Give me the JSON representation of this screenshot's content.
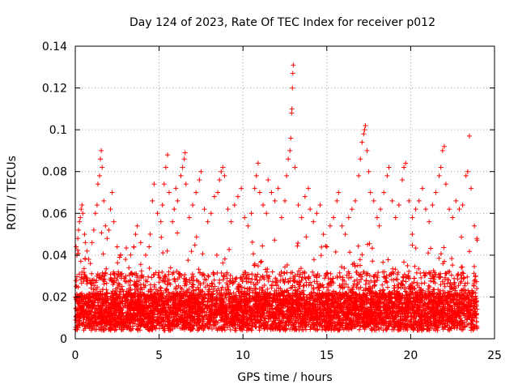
{
  "chart_data": {
    "type": "scatter",
    "title": "Day 124 of 2023, Rate Of TEC Index for receiver p012",
    "xlabel": "GPS time / hours",
    "ylabel": "ROTI / TECUs",
    "xlim": [
      0,
      25
    ],
    "ylim": [
      0,
      0.14
    ],
    "xticks": [
      "0",
      "5",
      "10",
      "15",
      "20",
      "25"
    ],
    "yticks": [
      "0",
      "0.02",
      "0.04",
      "0.06",
      "0.08",
      "0.1",
      "0.12",
      "0.14"
    ],
    "grid": true,
    "marker": "plus",
    "color": "#ff0000",
    "points": [
      [
        0.05,
        0.044
      ],
      [
        0.1,
        0.04
      ],
      [
        0.15,
        0.048
      ],
      [
        0.2,
        0.052
      ],
      [
        0.25,
        0.056
      ],
      [
        0.3,
        0.058
      ],
      [
        0.35,
        0.062
      ],
      [
        0.4,
        0.064
      ],
      [
        0.45,
        0.06
      ],
      [
        0.55,
        0.05
      ],
      [
        0.6,
        0.046
      ],
      [
        0.7,
        0.042
      ],
      [
        0.8,
        0.038
      ],
      [
        0.9,
        0.036
      ],
      [
        1.0,
        0.046
      ],
      [
        1.1,
        0.052
      ],
      [
        1.2,
        0.06
      ],
      [
        1.3,
        0.064
      ],
      [
        1.35,
        0.074
      ],
      [
        1.45,
        0.078
      ],
      [
        1.5,
        0.086
      ],
      [
        1.55,
        0.09
      ],
      [
        1.6,
        0.082
      ],
      [
        1.7,
        0.066
      ],
      [
        1.8,
        0.054
      ],
      [
        1.9,
        0.048
      ],
      [
        2.0,
        0.052
      ],
      [
        2.1,
        0.062
      ],
      [
        2.2,
        0.07
      ],
      [
        2.3,
        0.056
      ],
      [
        2.5,
        0.044
      ],
      [
        2.7,
        0.04
      ],
      [
        3.0,
        0.038
      ],
      [
        3.2,
        0.034
      ],
      [
        3.5,
        0.044
      ],
      [
        3.6,
        0.05
      ],
      [
        3.7,
        0.054
      ],
      [
        3.9,
        0.046
      ],
      [
        4.2,
        0.04
      ],
      [
        4.4,
        0.044
      ],
      [
        4.6,
        0.066
      ],
      [
        4.7,
        0.074
      ],
      [
        4.9,
        0.06
      ],
      [
        5.1,
        0.056
      ],
      [
        5.2,
        0.064
      ],
      [
        5.3,
        0.074
      ],
      [
        5.4,
        0.082
      ],
      [
        5.5,
        0.088
      ],
      [
        5.6,
        0.07
      ],
      [
        5.8,
        0.056
      ],
      [
        5.9,
        0.062
      ],
      [
        6.0,
        0.072
      ],
      [
        6.1,
        0.066
      ],
      [
        6.3,
        0.078
      ],
      [
        6.4,
        0.082
      ],
      [
        6.5,
        0.086
      ],
      [
        6.55,
        0.089
      ],
      [
        6.6,
        0.074
      ],
      [
        6.8,
        0.058
      ],
      [
        7.0,
        0.064
      ],
      [
        7.2,
        0.07
      ],
      [
        7.4,
        0.076
      ],
      [
        7.5,
        0.08
      ],
      [
        7.7,
        0.062
      ],
      [
        7.9,
        0.056
      ],
      [
        8.1,
        0.06
      ],
      [
        8.3,
        0.068
      ],
      [
        8.5,
        0.07
      ],
      [
        8.6,
        0.076
      ],
      [
        8.7,
        0.08
      ],
      [
        8.8,
        0.082
      ],
      [
        8.9,
        0.078
      ],
      [
        9.1,
        0.062
      ],
      [
        9.3,
        0.056
      ],
      [
        9.5,
        0.064
      ],
      [
        9.7,
        0.068
      ],
      [
        9.9,
        0.072
      ],
      [
        10.1,
        0.058
      ],
      [
        10.3,
        0.054
      ],
      [
        10.5,
        0.06
      ],
      [
        10.7,
        0.072
      ],
      [
        10.8,
        0.078
      ],
      [
        10.9,
        0.084
      ],
      [
        11.0,
        0.07
      ],
      [
        11.2,
        0.064
      ],
      [
        11.4,
        0.06
      ],
      [
        11.5,
        0.076
      ],
      [
        11.7,
        0.07
      ],
      [
        11.9,
        0.066
      ],
      [
        12.1,
        0.072
      ],
      [
        12.3,
        0.058
      ],
      [
        12.5,
        0.066
      ],
      [
        12.6,
        0.078
      ],
      [
        12.7,
        0.086
      ],
      [
        12.8,
        0.09
      ],
      [
        12.85,
        0.096
      ],
      [
        12.9,
        0.108
      ],
      [
        12.92,
        0.11
      ],
      [
        12.95,
        0.12
      ],
      [
        12.97,
        0.127
      ],
      [
        13.0,
        0.131
      ],
      [
        13.1,
        0.082
      ],
      [
        13.3,
        0.064
      ],
      [
        13.5,
        0.058
      ],
      [
        13.7,
        0.068
      ],
      [
        13.9,
        0.072
      ],
      [
        14.0,
        0.062
      ],
      [
        14.2,
        0.056
      ],
      [
        14.4,
        0.06
      ],
      [
        14.6,
        0.064
      ],
      [
        14.8,
        0.05
      ],
      [
        15.0,
        0.044
      ],
      [
        15.2,
        0.054
      ],
      [
        15.4,
        0.058
      ],
      [
        15.6,
        0.066
      ],
      [
        15.7,
        0.07
      ],
      [
        15.9,
        0.054
      ],
      [
        16.1,
        0.05
      ],
      [
        16.3,
        0.058
      ],
      [
        16.5,
        0.062
      ],
      [
        16.7,
        0.066
      ],
      [
        16.9,
        0.078
      ],
      [
        17.0,
        0.086
      ],
      [
        17.1,
        0.094
      ],
      [
        17.2,
        0.098
      ],
      [
        17.25,
        0.1
      ],
      [
        17.3,
        0.102
      ],
      [
        17.4,
        0.09
      ],
      [
        17.5,
        0.08
      ],
      [
        17.6,
        0.07
      ],
      [
        17.8,
        0.066
      ],
      [
        18.0,
        0.058
      ],
      [
        18.2,
        0.062
      ],
      [
        18.4,
        0.07
      ],
      [
        18.6,
        0.078
      ],
      [
        18.7,
        0.082
      ],
      [
        18.9,
        0.066
      ],
      [
        19.1,
        0.058
      ],
      [
        19.3,
        0.064
      ],
      [
        19.5,
        0.076
      ],
      [
        19.6,
        0.082
      ],
      [
        19.7,
        0.084
      ],
      [
        19.9,
        0.066
      ],
      [
        20.1,
        0.058
      ],
      [
        20.3,
        0.062
      ],
      [
        20.5,
        0.066
      ],
      [
        20.7,
        0.072
      ],
      [
        20.9,
        0.062
      ],
      [
        21.1,
        0.056
      ],
      [
        21.3,
        0.064
      ],
      [
        21.5,
        0.07
      ],
      [
        21.7,
        0.078
      ],
      [
        21.8,
        0.082
      ],
      [
        21.9,
        0.09
      ],
      [
        22.0,
        0.092
      ],
      [
        22.1,
        0.074
      ],
      [
        22.3,
        0.062
      ],
      [
        22.5,
        0.058
      ],
      [
        22.7,
        0.066
      ],
      [
        22.9,
        0.062
      ],
      [
        23.1,
        0.064
      ],
      [
        23.3,
        0.078
      ],
      [
        23.4,
        0.08
      ],
      [
        23.5,
        0.097
      ],
      [
        23.6,
        0.072
      ],
      [
        23.8,
        0.054
      ],
      [
        23.95,
        0.048
      ]
    ]
  }
}
